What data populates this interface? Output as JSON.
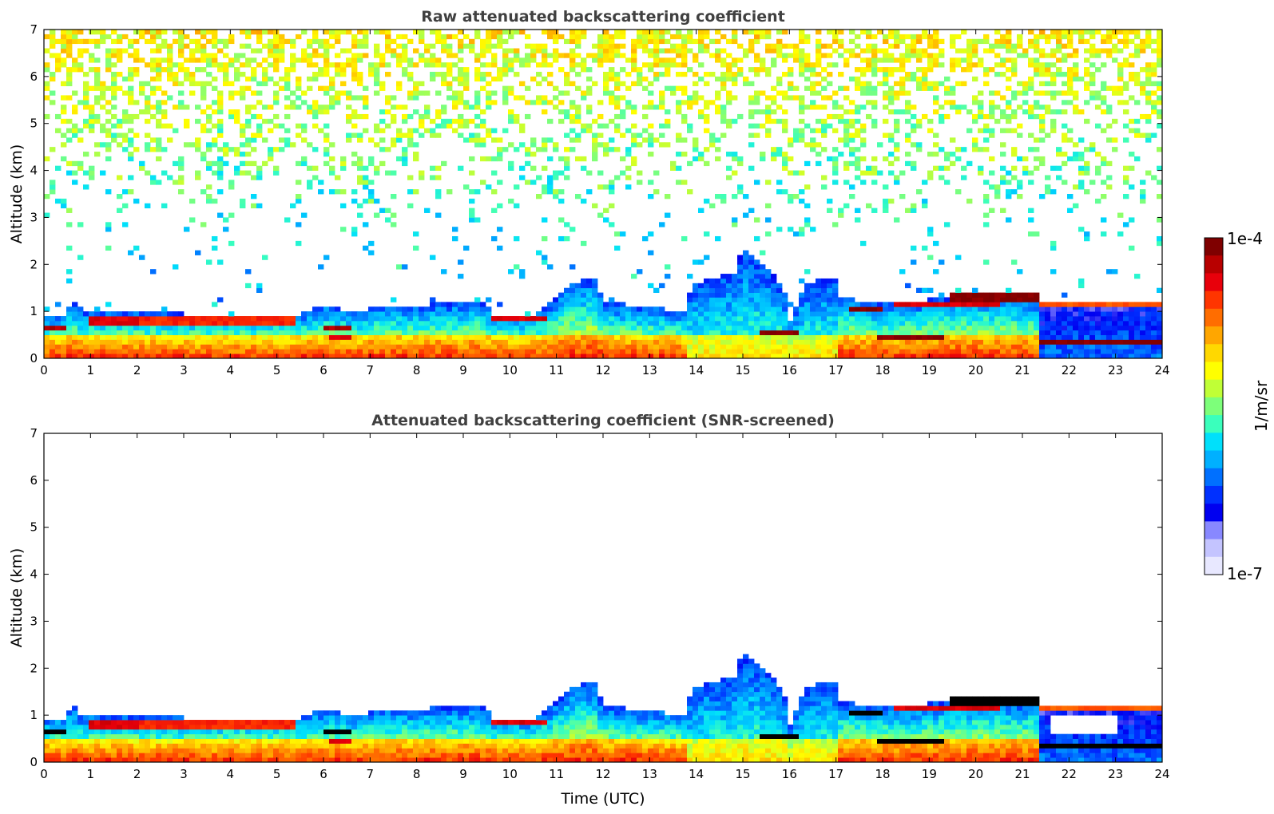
{
  "chart_data": [
    {
      "type": "heatmap",
      "title": "Raw attenuated backscattering coefficient",
      "xlabel": "",
      "ylabel": "Altitude (km)",
      "xlim": [
        0,
        24
      ],
      "ylim": [
        0,
        7
      ],
      "x_ticks": [
        "0",
        "1",
        "2",
        "3",
        "4",
        "5",
        "6",
        "7",
        "8",
        "9",
        "10",
        "11",
        "12",
        "13",
        "14",
        "15",
        "16",
        "17",
        "18",
        "19",
        "20",
        "21",
        "22",
        "23",
        "24"
      ],
      "y_ticks": [
        "0",
        "1",
        "2",
        "3",
        "4",
        "5",
        "6",
        "7"
      ],
      "mode": "raw"
    },
    {
      "type": "heatmap",
      "title": "Attenuated backscattering coefficient (SNR-screened)",
      "xlabel": "Time (UTC)",
      "ylabel": "Altitude (km)",
      "xlim": [
        0,
        24
      ],
      "ylim": [
        0,
        7
      ],
      "x_ticks": [
        "0",
        "1",
        "2",
        "3",
        "4",
        "5",
        "6",
        "7",
        "8",
        "9",
        "10",
        "11",
        "12",
        "13",
        "14",
        "15",
        "16",
        "17",
        "18",
        "19",
        "20",
        "21",
        "22",
        "23",
        "24"
      ],
      "y_ticks": [
        "0",
        "1",
        "2",
        "3",
        "4",
        "5",
        "6",
        "7"
      ],
      "mode": "screened"
    }
  ],
  "colorbar": {
    "label": "1/m/sr",
    "max_label": "1e-4",
    "min_label": "1e-7",
    "colors": [
      "#7f0000",
      "#b80000",
      "#e8000b",
      "#ff3500",
      "#ff6d00",
      "#ffa600",
      "#ffd800",
      "#ffff00",
      "#c0ff36",
      "#7dff7a",
      "#3affbc",
      "#00e0fb",
      "#00b0ff",
      "#0070ff",
      "#0030ff",
      "#0000f0",
      "#8888ff",
      "#c4c4ff",
      "#e8e8ff"
    ]
  }
}
